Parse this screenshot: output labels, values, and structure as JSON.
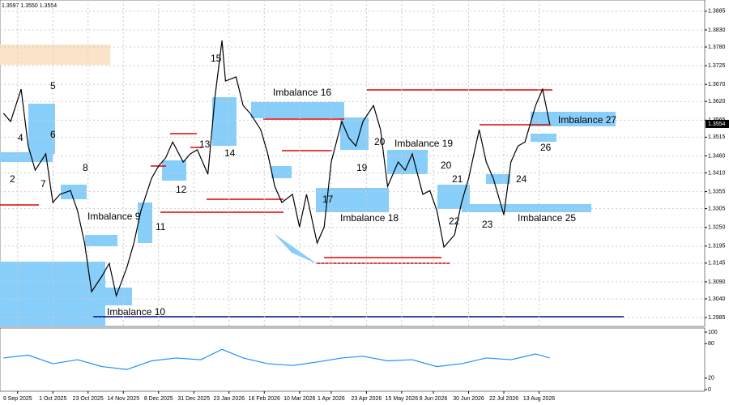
{
  "header": "1.3597 1.3550 1.3554",
  "chart_data": [
    {
      "type": "line",
      "color": "#000000",
      "x": [
        1,
        3,
        6,
        8,
        10,
        13,
        15,
        17,
        20,
        22,
        24,
        26,
        29,
        31,
        33,
        36,
        38,
        40,
        43,
        45,
        47,
        49,
        52,
        54,
        56,
        59,
        61,
        63,
        64,
        67,
        69,
        71,
        74,
        76,
        78,
        80,
        83,
        85,
        87,
        90,
        92,
        94,
        97,
        99,
        101,
        103,
        106,
        108,
        110,
        113,
        115,
        117,
        120,
        122,
        124,
        126,
        129,
        131,
        133,
        136,
        138,
        140,
        143,
        145,
        147,
        149,
        152,
        154,
        156
      ],
      "values": [
        1.3585,
        1.3561,
        1.3656,
        1.3489,
        1.3418,
        1.3466,
        1.3323,
        1.3347,
        1.3358,
        1.3299,
        1.3204,
        1.3061,
        1.3108,
        1.3144,
        1.3049,
        1.3132,
        1.3204,
        1.3299,
        1.3394,
        1.343,
        1.3454,
        1.3501,
        1.3442,
        1.3466,
        1.3478,
        1.3406,
        1.3632,
        1.3799,
        1.368,
        1.3692,
        1.3608,
        1.3585,
        1.3537,
        1.3466,
        1.337,
        1.3323,
        1.3347,
        1.3251,
        1.3347,
        1.3204,
        1.3251,
        1.3442,
        1.3561,
        1.3513,
        1.3489,
        1.3561,
        1.3608,
        1.3537,
        1.337,
        1.3442,
        1.3418,
        1.3466,
        1.3347,
        1.3358,
        1.3299,
        1.3192,
        1.3228,
        1.3323,
        1.3394,
        1.3537,
        1.3442,
        1.3394,
        1.3287,
        1.3442,
        1.3489,
        1.3501,
        1.3608,
        1.3656,
        1.3554
      ],
      "last_label": "1.3554",
      "xlim": [
        0,
        200
      ],
      "ylim": [
        1.2959,
        1.3918
      ],
      "xticks": [
        {
          "value": 5,
          "label": "9 Sep 2025"
        },
        {
          "value": 15,
          "label": "1 Oct 2025"
        },
        {
          "value": 25,
          "label": "23 Oct 2025"
        },
        {
          "value": 35,
          "label": "14 Nov 2025"
        },
        {
          "value": 45,
          "label": "8 Dec 2025"
        },
        {
          "value": 55,
          "label": "31 Dec 2025"
        },
        {
          "value": 65,
          "label": "23 Jan 2026"
        },
        {
          "value": 75,
          "label": "16 Feb 2026"
        },
        {
          "value": 85,
          "label": "10 Mar 2026"
        },
        {
          "value": 94,
          "label": "1 Apr 2026"
        },
        {
          "value": 104,
          "label": "23 Apr 2026"
        },
        {
          "value": 114,
          "label": "15 May 2026"
        },
        {
          "value": 123,
          "label": "8 Jun 2026"
        },
        {
          "value": 133,
          "label": "30 Jun 2026"
        },
        {
          "value": 143,
          "label": "22 Jul 2026"
        },
        {
          "value": 153,
          "label": "13 Aug 2026"
        }
      ],
      "yticks": [
        1.3885,
        {
          "value": 1.383,
          "label": "1.3830"
        },
        {
          "value": 1.378,
          "label": "1.3780"
        },
        1.3725,
        {
          "value": 1.367,
          "label": "1.3670"
        },
        {
          "value": 1.362,
          "label": "1.3620"
        },
        1.3565,
        1.3515,
        {
          "value": 1.346,
          "label": "1.3460"
        },
        {
          "value": 1.341,
          "label": "1.3410"
        },
        1.3355,
        1.3305,
        {
          "value": 1.325,
          "label": "1.3250"
        },
        1.3195,
        1.3145,
        {
          "value": 1.309,
          "label": "1.3090"
        },
        {
          "value": 1.304,
          "label": "1.3040"
        },
        1.2985
      ],
      "grid": true,
      "annotations": [
        "2",
        "4",
        "5",
        "6",
        "7",
        "8",
        "Imbalance 9",
        "Imbalance 10",
        "11",
        "12",
        "13",
        "14",
        "15",
        "Imbalance 16",
        "17",
        "Imbalance 18",
        "19",
        "20",
        "Imbalance 19",
        "20",
        "21",
        "22",
        "23",
        "24",
        "Imbalance 25",
        "26",
        "Imbalance 27"
      ]
    },
    {
      "type": "line",
      "color": "#1e90ff",
      "x": [
        1,
        8,
        15,
        22,
        29,
        36,
        43,
        50,
        57,
        63,
        69,
        76,
        83,
        90,
        97,
        103,
        110,
        117,
        124,
        131,
        138,
        145,
        152,
        156
      ],
      "values": [
        55,
        60,
        45,
        52,
        40,
        35,
        50,
        55,
        52,
        70,
        55,
        45,
        42,
        48,
        55,
        58,
        50,
        52,
        40,
        45,
        55,
        52,
        62,
        55
      ],
      "xlim": [
        0,
        200
      ],
      "ylim": [
        0,
        100
      ],
      "yticks": [
        100,
        80,
        20,
        0
      ]
    }
  ]
}
